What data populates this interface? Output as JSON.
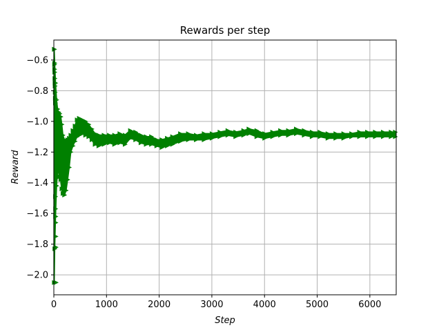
{
  "chart_data": {
    "type": "scatter",
    "title": "Rewards per step",
    "xlabel": "Step",
    "ylabel": "Reward",
    "xlim": [
      0,
      6500
    ],
    "ylim": [
      -2.13,
      -0.47
    ],
    "xticks": [
      0,
      1000,
      2000,
      3000,
      4000,
      5000,
      6000
    ],
    "yticks": [
      -2.0,
      -1.8,
      -1.6,
      -1.4,
      -1.2,
      -1.0,
      -0.8,
      -0.6
    ],
    "xtick_labels": [
      "0",
      "1000",
      "2000",
      "3000",
      "4000",
      "5000",
      "6000"
    ],
    "ytick_labels": [
      "−2.0",
      "−1.8",
      "−1.6",
      "−1.4",
      "−1.2",
      "−1.0",
      "−0.8",
      "−0.6"
    ],
    "grid": true,
    "marker": "triangle-right",
    "color": "#008000",
    "series": [
      {
        "upper": [
          [
            5,
            -0.53
          ],
          [
            15,
            -0.62
          ],
          [
            30,
            -0.75
          ],
          [
            50,
            -0.86
          ],
          [
            70,
            -0.92
          ],
          [
            90,
            -0.94
          ],
          [
            110,
            -0.95
          ],
          [
            130,
            -0.97
          ],
          [
            150,
            -1.02
          ],
          [
            170,
            -1.09
          ],
          [
            200,
            -1.12
          ],
          [
            230,
            -1.13
          ],
          [
            260,
            -1.12
          ],
          [
            290,
            -1.11
          ],
          [
            320,
            -1.09
          ],
          [
            360,
            -1.06
          ],
          [
            400,
            -1.03
          ],
          [
            440,
            -0.99
          ],
          [
            480,
            -0.98
          ],
          [
            540,
            -0.99
          ],
          [
            600,
            -1.0
          ],
          [
            660,
            -1.02
          ],
          [
            720,
            -1.05
          ],
          [
            780,
            -1.08
          ],
          [
            850,
            -1.09
          ],
          [
            950,
            -1.09
          ],
          [
            1050,
            -1.09
          ],
          [
            1150,
            -1.09
          ],
          [
            1250,
            -1.08
          ],
          [
            1350,
            -1.09
          ],
          [
            1450,
            -1.06
          ],
          [
            1550,
            -1.07
          ],
          [
            1650,
            -1.09
          ],
          [
            1750,
            -1.1
          ],
          [
            1850,
            -1.1
          ],
          [
            1950,
            -1.12
          ],
          [
            2050,
            -1.12
          ],
          [
            2150,
            -1.11
          ],
          [
            2250,
            -1.1
          ],
          [
            2400,
            -1.08
          ],
          [
            2550,
            -1.08
          ],
          [
            2700,
            -1.09
          ],
          [
            2850,
            -1.08
          ],
          [
            3000,
            -1.08
          ],
          [
            3150,
            -1.07
          ],
          [
            3300,
            -1.06
          ],
          [
            3450,
            -1.07
          ],
          [
            3600,
            -1.06
          ],
          [
            3700,
            -1.05
          ],
          [
            3850,
            -1.06
          ],
          [
            4000,
            -1.08
          ],
          [
            4150,
            -1.07
          ],
          [
            4300,
            -1.06
          ],
          [
            4450,
            -1.06
          ],
          [
            4600,
            -1.05
          ],
          [
            4750,
            -1.06
          ],
          [
            4900,
            -1.07
          ],
          [
            5050,
            -1.07
          ],
          [
            5200,
            -1.08
          ],
          [
            5350,
            -1.08
          ],
          [
            5500,
            -1.08
          ],
          [
            5650,
            -1.08
          ],
          [
            5800,
            -1.07
          ],
          [
            5950,
            -1.07
          ],
          [
            6100,
            -1.07
          ],
          [
            6250,
            -1.07
          ],
          [
            6400,
            -1.07
          ],
          [
            6480,
            -1.07
          ]
        ],
        "lower": [
          [
            5,
            -2.05
          ],
          [
            15,
            -1.83
          ],
          [
            30,
            -1.62
          ],
          [
            50,
            -1.42
          ],
          [
            70,
            -1.33
          ],
          [
            90,
            -1.33
          ],
          [
            110,
            -1.36
          ],
          [
            130,
            -1.38
          ],
          [
            150,
            -1.44
          ],
          [
            170,
            -1.47
          ],
          [
            200,
            -1.48
          ],
          [
            230,
            -1.45
          ],
          [
            260,
            -1.38
          ],
          [
            290,
            -1.3
          ],
          [
            320,
            -1.2
          ],
          [
            360,
            -1.16
          ],
          [
            400,
            -1.13
          ],
          [
            440,
            -1.1
          ],
          [
            480,
            -1.09
          ],
          [
            540,
            -1.08
          ],
          [
            600,
            -1.09
          ],
          [
            660,
            -1.1
          ],
          [
            720,
            -1.12
          ],
          [
            780,
            -1.15
          ],
          [
            850,
            -1.16
          ],
          [
            950,
            -1.15
          ],
          [
            1050,
            -1.14
          ],
          [
            1150,
            -1.15
          ],
          [
            1250,
            -1.14
          ],
          [
            1350,
            -1.15
          ],
          [
            1450,
            -1.11
          ],
          [
            1550,
            -1.12
          ],
          [
            1650,
            -1.14
          ],
          [
            1750,
            -1.15
          ],
          [
            1850,
            -1.15
          ],
          [
            1950,
            -1.16
          ],
          [
            2050,
            -1.17
          ],
          [
            2150,
            -1.16
          ],
          [
            2250,
            -1.15
          ],
          [
            2400,
            -1.13
          ],
          [
            2550,
            -1.12
          ],
          [
            2700,
            -1.12
          ],
          [
            2850,
            -1.12
          ],
          [
            3000,
            -1.11
          ],
          [
            3150,
            -1.1
          ],
          [
            3300,
            -1.09
          ],
          [
            3450,
            -1.1
          ],
          [
            3600,
            -1.09
          ],
          [
            3700,
            -1.08
          ],
          [
            3850,
            -1.1
          ],
          [
            4000,
            -1.11
          ],
          [
            4150,
            -1.1
          ],
          [
            4300,
            -1.09
          ],
          [
            4450,
            -1.09
          ],
          [
            4600,
            -1.08
          ],
          [
            4750,
            -1.09
          ],
          [
            4900,
            -1.1
          ],
          [
            5050,
            -1.1
          ],
          [
            5200,
            -1.11
          ],
          [
            5350,
            -1.11
          ],
          [
            5500,
            -1.11
          ],
          [
            5650,
            -1.1
          ],
          [
            5800,
            -1.1
          ],
          [
            5950,
            -1.1
          ],
          [
            6100,
            -1.1
          ],
          [
            6250,
            -1.1
          ],
          [
            6400,
            -1.1
          ],
          [
            6480,
            -1.1
          ]
        ],
        "early_scatter": [
          [
            8,
            -0.53
          ],
          [
            10,
            -0.63
          ],
          [
            12,
            -0.66
          ],
          [
            14,
            -0.68
          ],
          [
            16,
            -0.72
          ],
          [
            18,
            -0.75
          ],
          [
            20,
            -0.77
          ],
          [
            22,
            -0.81
          ],
          [
            24,
            -0.85
          ],
          [
            26,
            -0.88
          ],
          [
            28,
            -1.49
          ],
          [
            30,
            -1.57
          ],
          [
            32,
            -1.62
          ],
          [
            34,
            -1.66
          ],
          [
            36,
            -1.75
          ],
          [
            38,
            -1.82
          ],
          [
            40,
            -2.05
          ]
        ]
      }
    ]
  }
}
